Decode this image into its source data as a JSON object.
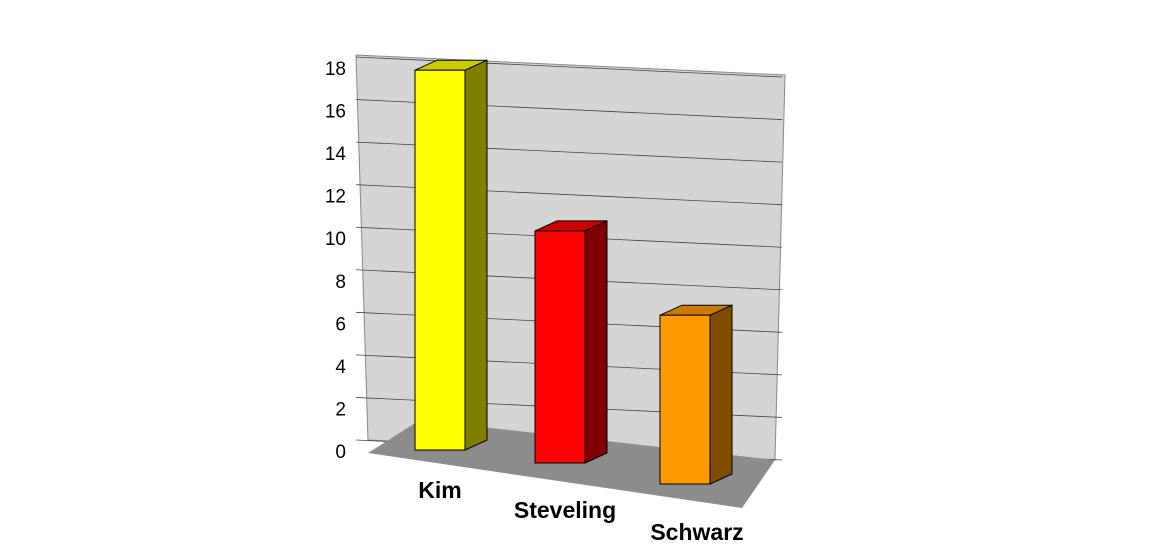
{
  "chart_data": {
    "type": "bar3d",
    "categories": [
      "Kim",
      "Steveling",
      "Schwarz"
    ],
    "values": [
      18,
      11,
      8
    ],
    "colors": [
      "#ffff00",
      "#ff0000",
      "#ff9900"
    ],
    "ylim": [
      0,
      18
    ],
    "yticks": [
      0,
      2,
      4,
      6,
      8,
      10,
      12,
      14,
      16,
      18
    ],
    "grid": true
  }
}
